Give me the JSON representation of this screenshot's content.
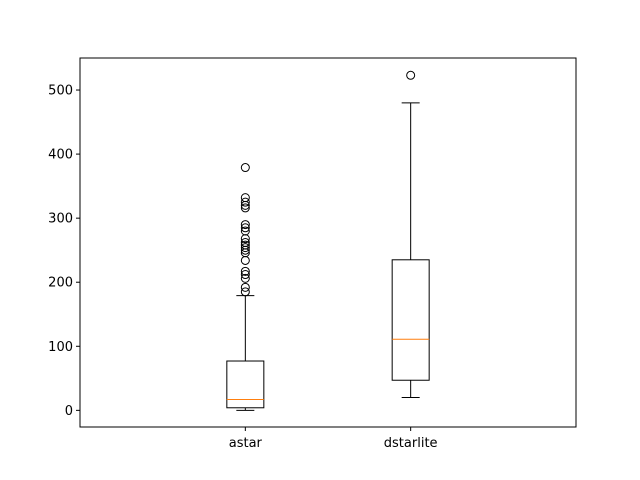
{
  "chart_data": {
    "type": "box",
    "title": "",
    "xlabel": "",
    "ylabel": "",
    "categories": [
      "astar",
      "dstarlite"
    ],
    "ylim": [
      -26,
      550
    ],
    "yticks": [
      0,
      100,
      200,
      300,
      400,
      500
    ],
    "grid": false,
    "series": [
      {
        "category": "astar",
        "whisker_low": 0,
        "q1": 4,
        "median": 17,
        "q3": 77,
        "whisker_high": 179,
        "outliers": [
          185,
          192,
          206,
          212,
          217,
          234,
          246,
          250,
          254,
          258,
          262,
          268,
          280,
          285,
          290,
          316,
          320,
          325,
          332,
          379
        ]
      },
      {
        "category": "dstarlite",
        "whisker_low": 20,
        "q1": 47,
        "median": 111,
        "q3": 235,
        "whisker_high": 480,
        "outliers": [
          523
        ]
      }
    ],
    "colors": {
      "box": "#000000",
      "median": "#ff7f0e",
      "outlier": "#000000"
    }
  }
}
